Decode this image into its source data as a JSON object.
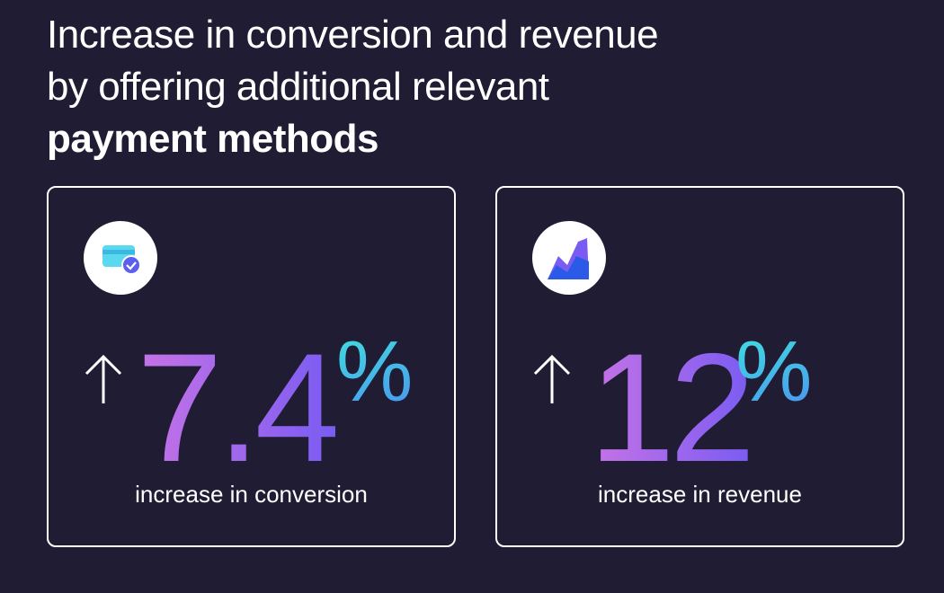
{
  "title": {
    "lines": [
      "Increase in conversion and revenue",
      "by offering additional relevant"
    ],
    "emphasis": "payment methods"
  },
  "cards": [
    {
      "value": 7.4,
      "unit": "%",
      "label": "increase in conversion"
    },
    {
      "value": 12,
      "unit": "%",
      "label": "increase in revenue"
    }
  ]
}
